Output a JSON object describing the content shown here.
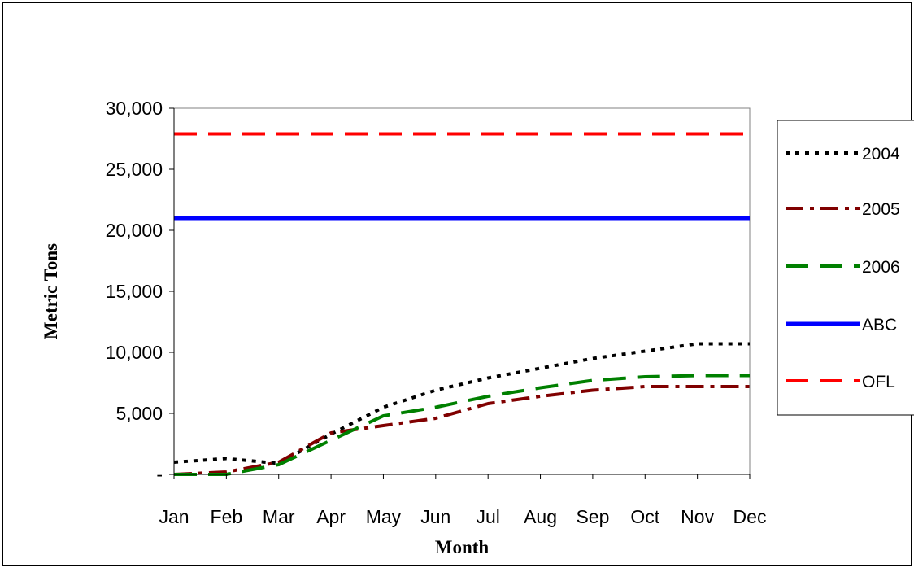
{
  "chart_data": {
    "type": "line",
    "title": "",
    "xlabel": "Month",
    "ylabel": "Metric Tons",
    "categories": [
      "Jan",
      "Feb",
      "Mar",
      "Apr",
      "May",
      "Jun",
      "Jul",
      "Aug",
      "Sep",
      "Oct",
      "Nov",
      "Dec"
    ],
    "ylim": [
      0,
      30000
    ],
    "yticks": [
      0,
      5000,
      10000,
      15000,
      20000,
      25000,
      30000
    ],
    "ytick_labels": [
      "-",
      "5,000",
      "10,000",
      "15,000",
      "20,000",
      "25,000",
      "30,000"
    ],
    "grid": false,
    "legend_position": "right",
    "series": [
      {
        "name": "2004",
        "color": "#000000",
        "dash": "dotted",
        "values": [
          1000,
          1300,
          900,
          3300,
          5500,
          6900,
          7900,
          8700,
          9500,
          10100,
          10700,
          10700
        ]
      },
      {
        "name": "2005",
        "color": "#800000",
        "dash": "dash-dot",
        "values": [
          0,
          200,
          1000,
          3400,
          4000,
          4600,
          5800,
          6400,
          6900,
          7200,
          7200,
          7200
        ]
      },
      {
        "name": "2006",
        "color": "#008000",
        "dash": "long-dash",
        "values": [
          0,
          0,
          800,
          2800,
          4800,
          5500,
          6400,
          7100,
          7700,
          8000,
          8100,
          8100
        ]
      },
      {
        "name": "ABC",
        "color": "#0000ff",
        "dash": "solid",
        "values": [
          21000,
          21000,
          21000,
          21000,
          21000,
          21000,
          21000,
          21000,
          21000,
          21000,
          21000,
          21000
        ]
      },
      {
        "name": "OFL",
        "color": "#ff0000",
        "dash": "long-dash",
        "values": [
          27900,
          27900,
          27900,
          27900,
          27900,
          27900,
          27900,
          27900,
          27900,
          27900,
          27900,
          27900
        ]
      }
    ]
  }
}
